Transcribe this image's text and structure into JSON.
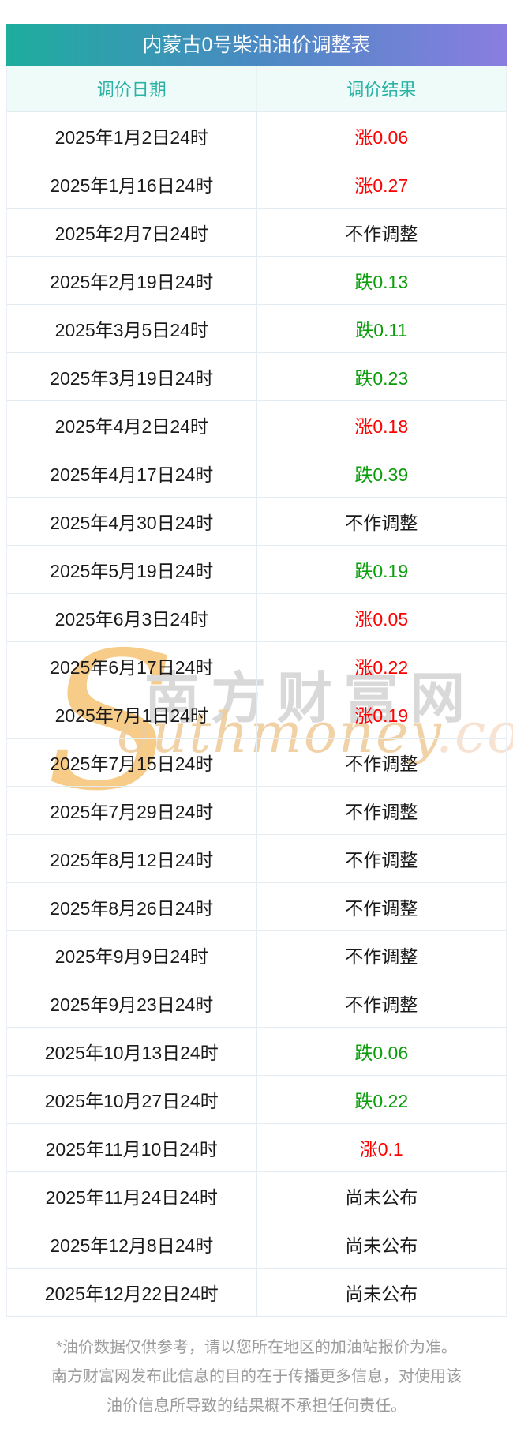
{
  "title": "内蒙古0号柴油油价调整表",
  "columns": {
    "date": "调价日期",
    "result": "调价结果"
  },
  "rows": [
    {
      "date": "2025年1月2日24时",
      "result": "涨0.06",
      "trend": "up"
    },
    {
      "date": "2025年1月16日24时",
      "result": "涨0.27",
      "trend": "up"
    },
    {
      "date": "2025年2月7日24时",
      "result": "不作调整",
      "trend": "none"
    },
    {
      "date": "2025年2月19日24时",
      "result": "跌0.13",
      "trend": "down"
    },
    {
      "date": "2025年3月5日24时",
      "result": "跌0.11",
      "trend": "down"
    },
    {
      "date": "2025年3月19日24时",
      "result": "跌0.23",
      "trend": "down"
    },
    {
      "date": "2025年4月2日24时",
      "result": "涨0.18",
      "trend": "up"
    },
    {
      "date": "2025年4月17日24时",
      "result": "跌0.39",
      "trend": "down"
    },
    {
      "date": "2025年4月30日24时",
      "result": "不作调整",
      "trend": "none"
    },
    {
      "date": "2025年5月19日24时",
      "result": "跌0.19",
      "trend": "down"
    },
    {
      "date": "2025年6月3日24时",
      "result": "涨0.05",
      "trend": "up"
    },
    {
      "date": "2025年6月17日24时",
      "result": "涨0.22",
      "trend": "up"
    },
    {
      "date": "2025年7月1日24时",
      "result": "涨0.19",
      "trend": "up"
    },
    {
      "date": "2025年7月15日24时",
      "result": "不作调整",
      "trend": "none"
    },
    {
      "date": "2025年7月29日24时",
      "result": "不作调整",
      "trend": "none"
    },
    {
      "date": "2025年8月12日24时",
      "result": "不作调整",
      "trend": "none"
    },
    {
      "date": "2025年8月26日24时",
      "result": "不作调整",
      "trend": "none"
    },
    {
      "date": "2025年9月9日24时",
      "result": "不作调整",
      "trend": "none"
    },
    {
      "date": "2025年9月23日24时",
      "result": "不作调整",
      "trend": "none"
    },
    {
      "date": "2025年10月13日24时",
      "result": "跌0.06",
      "trend": "down"
    },
    {
      "date": "2025年10月27日24时",
      "result": "跌0.22",
      "trend": "down"
    },
    {
      "date": "2025年11月10日24时",
      "result": "涨0.1",
      "trend": "up"
    },
    {
      "date": "2025年11月24日24时",
      "result": "尚未公布",
      "trend": "pending"
    },
    {
      "date": "2025年12月8日24时",
      "result": "尚未公布",
      "trend": "pending"
    },
    {
      "date": "2025年12月22日24时",
      "result": "尚未公布",
      "trend": "pending"
    }
  ],
  "trend_colors": {
    "up": "#fe0000",
    "down": "#0a9d0a",
    "none": "#1a1a1a",
    "pending": "#1a1a1a"
  },
  "theme": {
    "header_gradient_start": "#1ead9e",
    "header_gradient_end": "#8a7de0",
    "column_header_text": "#2ab3a4",
    "column_header_bg": "#effbf9",
    "divider": "#e4ebf1",
    "disclaimer_text": "#9c9c9c"
  },
  "watermark": {
    "swash": "S",
    "cn": "南方财富网",
    "en_main": "outhmoney",
    "en_tld": ".com"
  },
  "disclaimer": {
    "lines": [
      "*油价数据仅供参考，请以您所在地区的加油站报价为准。",
      "南方财富网发布此信息的目的在于传播更多信息，对使用该",
      "油价信息所导致的结果概不承担任何责任。"
    ]
  }
}
